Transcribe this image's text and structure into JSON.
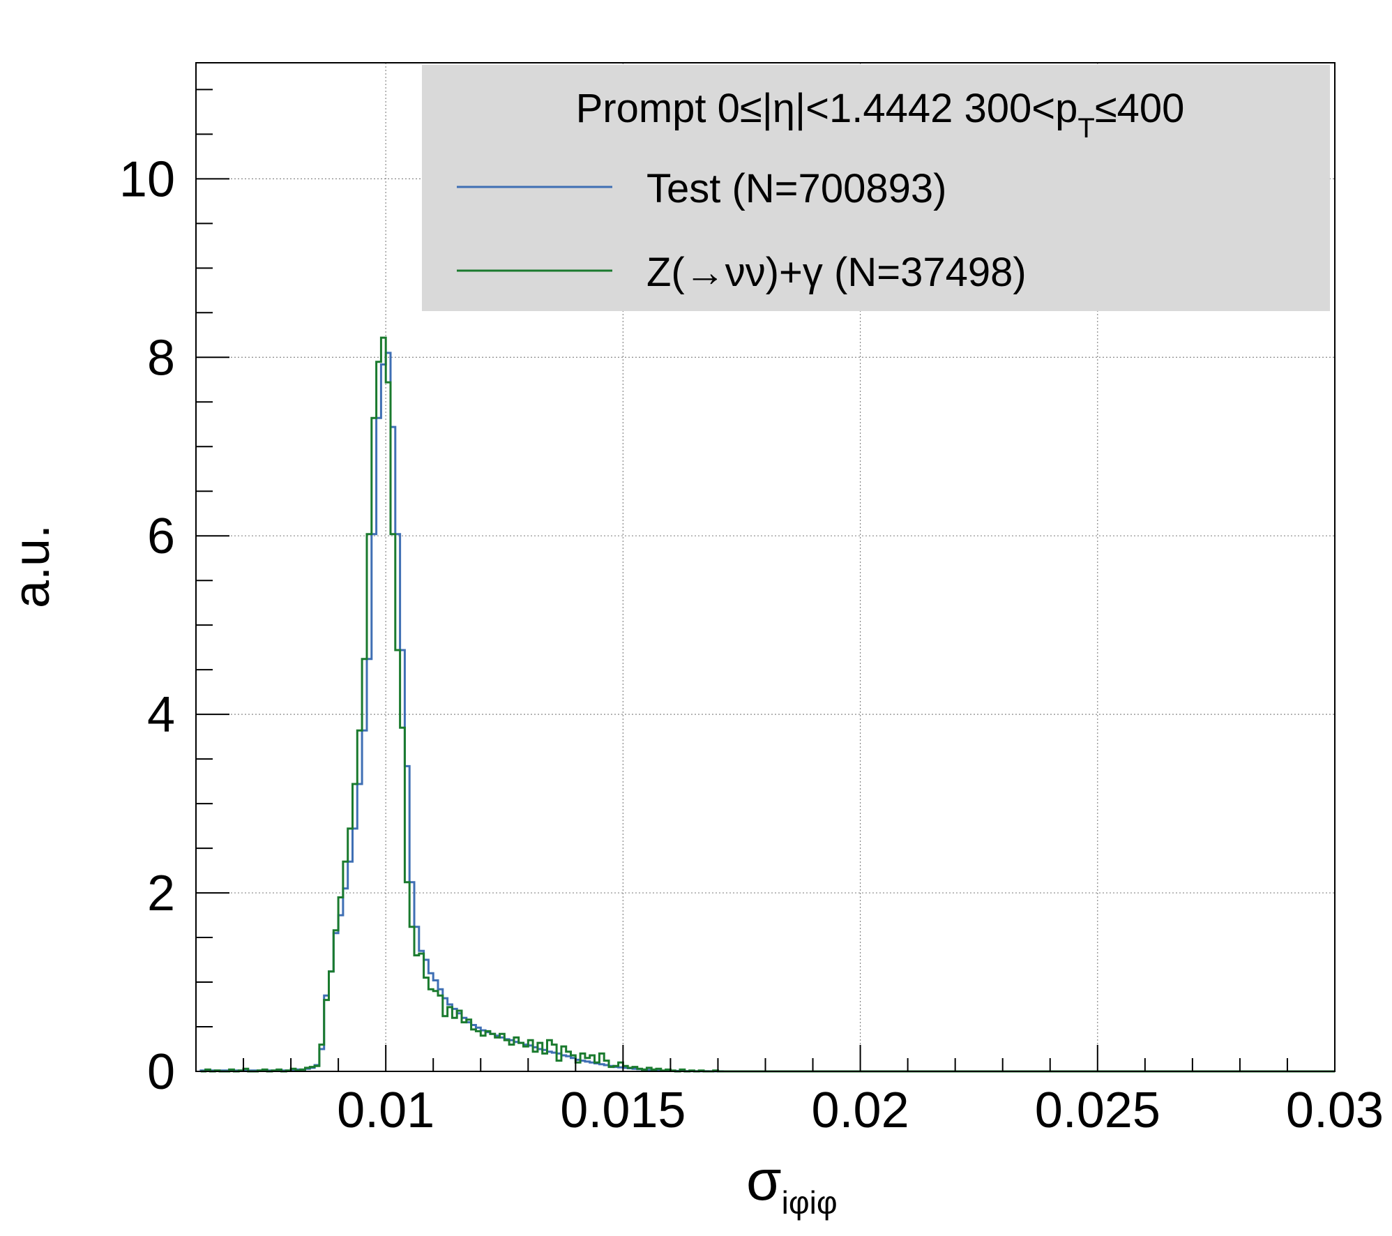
{
  "chart_data": {
    "type": "line",
    "style": "step-histogram",
    "xlim": [
      0.006,
      0.03
    ],
    "ylim": [
      0,
      11.3
    ],
    "x_ticks": [
      0.01,
      0.015,
      0.02,
      0.025,
      0.03
    ],
    "x_tick_labels": [
      "0.01",
      "0.015",
      "0.02",
      "0.025",
      "0.03"
    ],
    "y_ticks": [
      0,
      2,
      4,
      6,
      8,
      10
    ],
    "y_tick_labels": [
      "0",
      "2",
      "4",
      "6",
      "8",
      "10"
    ],
    "ylabel": "a.u.",
    "xlabel": {
      "main": "σ",
      "sub": "iφiφ"
    },
    "grid": true,
    "legend_position": "top-right",
    "legend_title": {
      "pre": "Prompt  0≤|η|<1.4442  300<p",
      "sub": "T",
      "post": "≤400"
    },
    "bin_width": 0.0001,
    "bin_start": 0.0061,
    "series": [
      {
        "name": "Test (N=700893)",
        "color": "#3f6fb4",
        "values": [
          0.01,
          0.01,
          0.01,
          0.01,
          0.01,
          0.01,
          0.01,
          0.01,
          0.01,
          0.01,
          0.01,
          0.01,
          0.01,
          0.01,
          0.01,
          0.01,
          0.01,
          0.01,
          0.01,
          0.01,
          0.02,
          0.02,
          0.03,
          0.04,
          0.07,
          0.25,
          0.85,
          1.12,
          1.55,
          1.75,
          2.05,
          2.35,
          2.72,
          3.22,
          3.82,
          4.62,
          6.02,
          7.32,
          7.92,
          8.05,
          7.22,
          6.02,
          4.72,
          3.42,
          2.12,
          1.62,
          1.35,
          1.25,
          1.1,
          1.02,
          0.92,
          0.82,
          0.75,
          0.7,
          0.65,
          0.6,
          0.55,
          0.52,
          0.49,
          0.46,
          0.44,
          0.42,
          0.4,
          0.38,
          0.36,
          0.35,
          0.33,
          0.32,
          0.3,
          0.29,
          0.27,
          0.25,
          0.24,
          0.22,
          0.21,
          0.2,
          0.18,
          0.17,
          0.15,
          0.13,
          0.12,
          0.11,
          0.1,
          0.09,
          0.08,
          0.07,
          0.06,
          0.05,
          0.045,
          0.04,
          0.035,
          0.03,
          0.025,
          0.02,
          0.015,
          0.012,
          0.01,
          0.008,
          0.007,
          0.006,
          0.005,
          0.004,
          0.003,
          0.003,
          0.002,
          0.002,
          0.002,
          0.001,
          0.001,
          0.001
        ]
      },
      {
        "name": "Z(→νν)+γ (N=37498)",
        "color": "#1a7a2e",
        "values": [
          0.0,
          0.02,
          0.0,
          0.01,
          0.0,
          0.0,
          0.02,
          0.0,
          0.01,
          0.03,
          0.0,
          0.0,
          0.01,
          0.02,
          0.0,
          0.01,
          0.02,
          0.0,
          0.01,
          0.03,
          0.01,
          0.02,
          0.04,
          0.05,
          0.06,
          0.3,
          0.8,
          1.12,
          1.58,
          1.95,
          2.35,
          2.72,
          3.22,
          3.82,
          4.62,
          6.02,
          7.32,
          7.95,
          8.22,
          7.72,
          6.02,
          4.72,
          3.85,
          2.12,
          1.62,
          1.3,
          1.32,
          1.05,
          0.92,
          0.9,
          0.85,
          0.62,
          0.72,
          0.6,
          0.68,
          0.55,
          0.58,
          0.47,
          0.45,
          0.4,
          0.45,
          0.42,
          0.38,
          0.42,
          0.35,
          0.3,
          0.38,
          0.32,
          0.28,
          0.35,
          0.22,
          0.32,
          0.2,
          0.35,
          0.3,
          0.12,
          0.28,
          0.22,
          0.18,
          0.1,
          0.2,
          0.15,
          0.18,
          0.1,
          0.2,
          0.12,
          0.05,
          0.06,
          0.1,
          0.06,
          0.04,
          0.05,
          0.03,
          0.02,
          0.04,
          0.02,
          0.03,
          0.01,
          0.02,
          0.01,
          0.0,
          0.02,
          0.0,
          0.01,
          0.0,
          0.01,
          0.0,
          0.0,
          0.01,
          0.0
        ]
      }
    ]
  }
}
